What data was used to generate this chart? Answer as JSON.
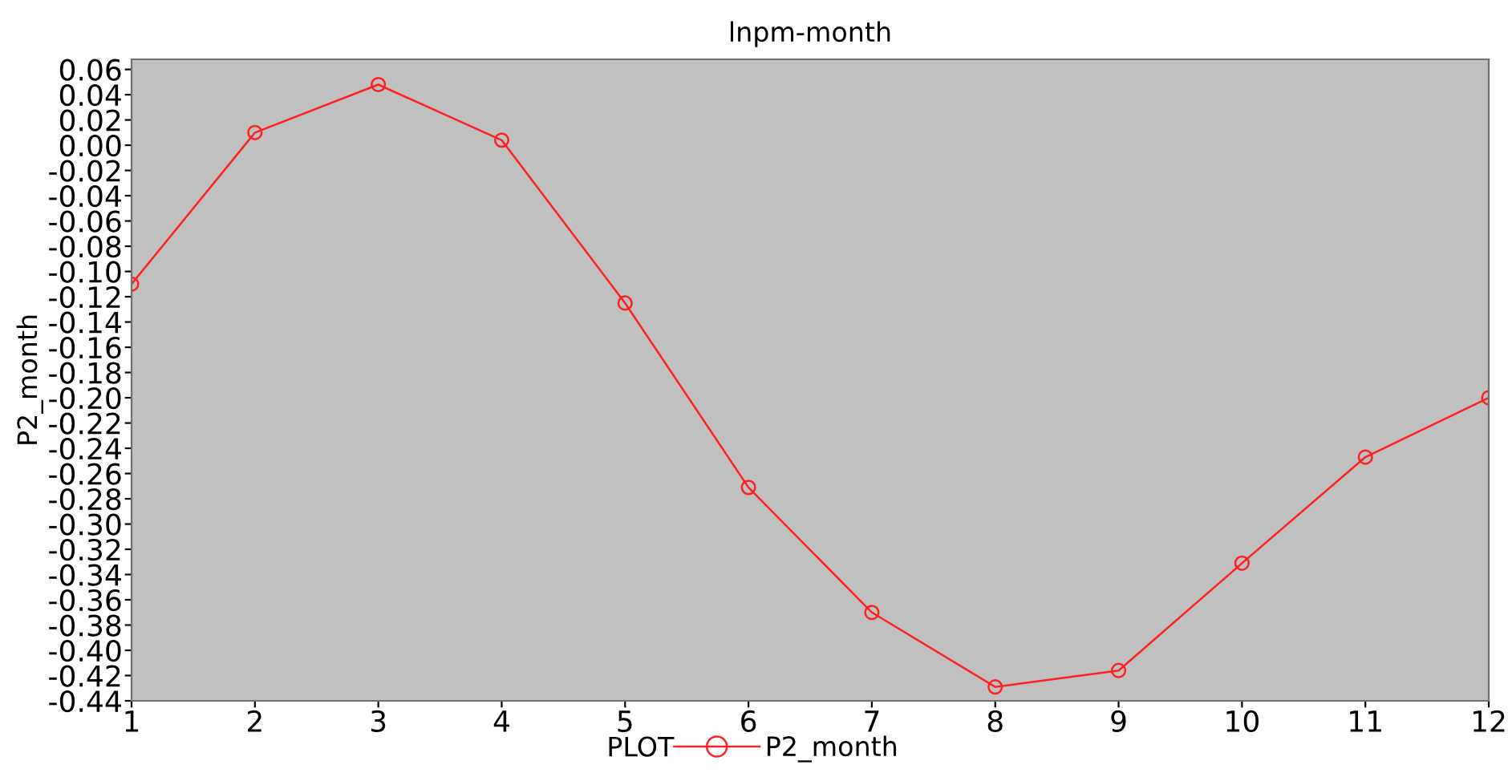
{
  "chart_data": {
    "type": "line",
    "title": "lnpm-month",
    "ylabel": "P2_month",
    "legend_title": "PLOT",
    "x": [
      1,
      2,
      3,
      4,
      5,
      6,
      7,
      8,
      9,
      10,
      11,
      12
    ],
    "series": [
      {
        "name": "P2_month",
        "color": "#ff2020",
        "values": [
          -0.11,
          0.01,
          0.048,
          0.004,
          -0.125,
          -0.271,
          -0.37,
          -0.429,
          -0.416,
          -0.331,
          -0.247,
          -0.2
        ]
      }
    ],
    "xlim": [
      1,
      12
    ],
    "xticks": [
      1,
      2,
      3,
      4,
      5,
      6,
      7,
      8,
      9,
      10,
      11,
      12
    ],
    "ylim": [
      -0.44,
      0.068
    ],
    "yticks": [
      {
        "value": 0.06,
        "label": "0.06"
      },
      {
        "value": 0.04,
        "label": "0.04"
      },
      {
        "value": 0.02,
        "label": "0.02"
      },
      {
        "value": 0,
        "label": "0.00"
      },
      {
        "value": -0.02,
        "label": "-0.02"
      },
      {
        "value": -0.04,
        "label": "-0.04"
      },
      {
        "value": -0.06,
        "label": "-0.06"
      },
      {
        "value": -0.08,
        "label": "-0.08"
      },
      {
        "value": -0.1,
        "label": "-0.10"
      },
      {
        "value": -0.12,
        "label": "-0.12"
      },
      {
        "value": -0.14,
        "label": "-0.14"
      },
      {
        "value": -0.16,
        "label": "-0.16"
      },
      {
        "value": -0.18,
        "label": "-0.18"
      },
      {
        "value": -0.2,
        "label": "-0.20"
      },
      {
        "value": -0.22,
        "label": "-0.22"
      },
      {
        "value": -0.24,
        "label": "-0.24"
      },
      {
        "value": -0.26,
        "label": "-0.26"
      },
      {
        "value": -0.28,
        "label": "-0.28"
      },
      {
        "value": -0.3,
        "label": "-0.30"
      },
      {
        "value": -0.32,
        "label": "-0.32"
      },
      {
        "value": -0.34,
        "label": "-0.34"
      },
      {
        "value": -0.36,
        "label": "-0.36"
      },
      {
        "value": -0.38,
        "label": "-0.38"
      },
      {
        "value": -0.4,
        "label": "-0.40"
      },
      {
        "value": -0.42,
        "label": "-0.42"
      },
      {
        "value": -0.44,
        "label": "-0.44"
      }
    ],
    "grid": false,
    "legend": "bottom",
    "marker": "circle",
    "line_style": "solid"
  }
}
